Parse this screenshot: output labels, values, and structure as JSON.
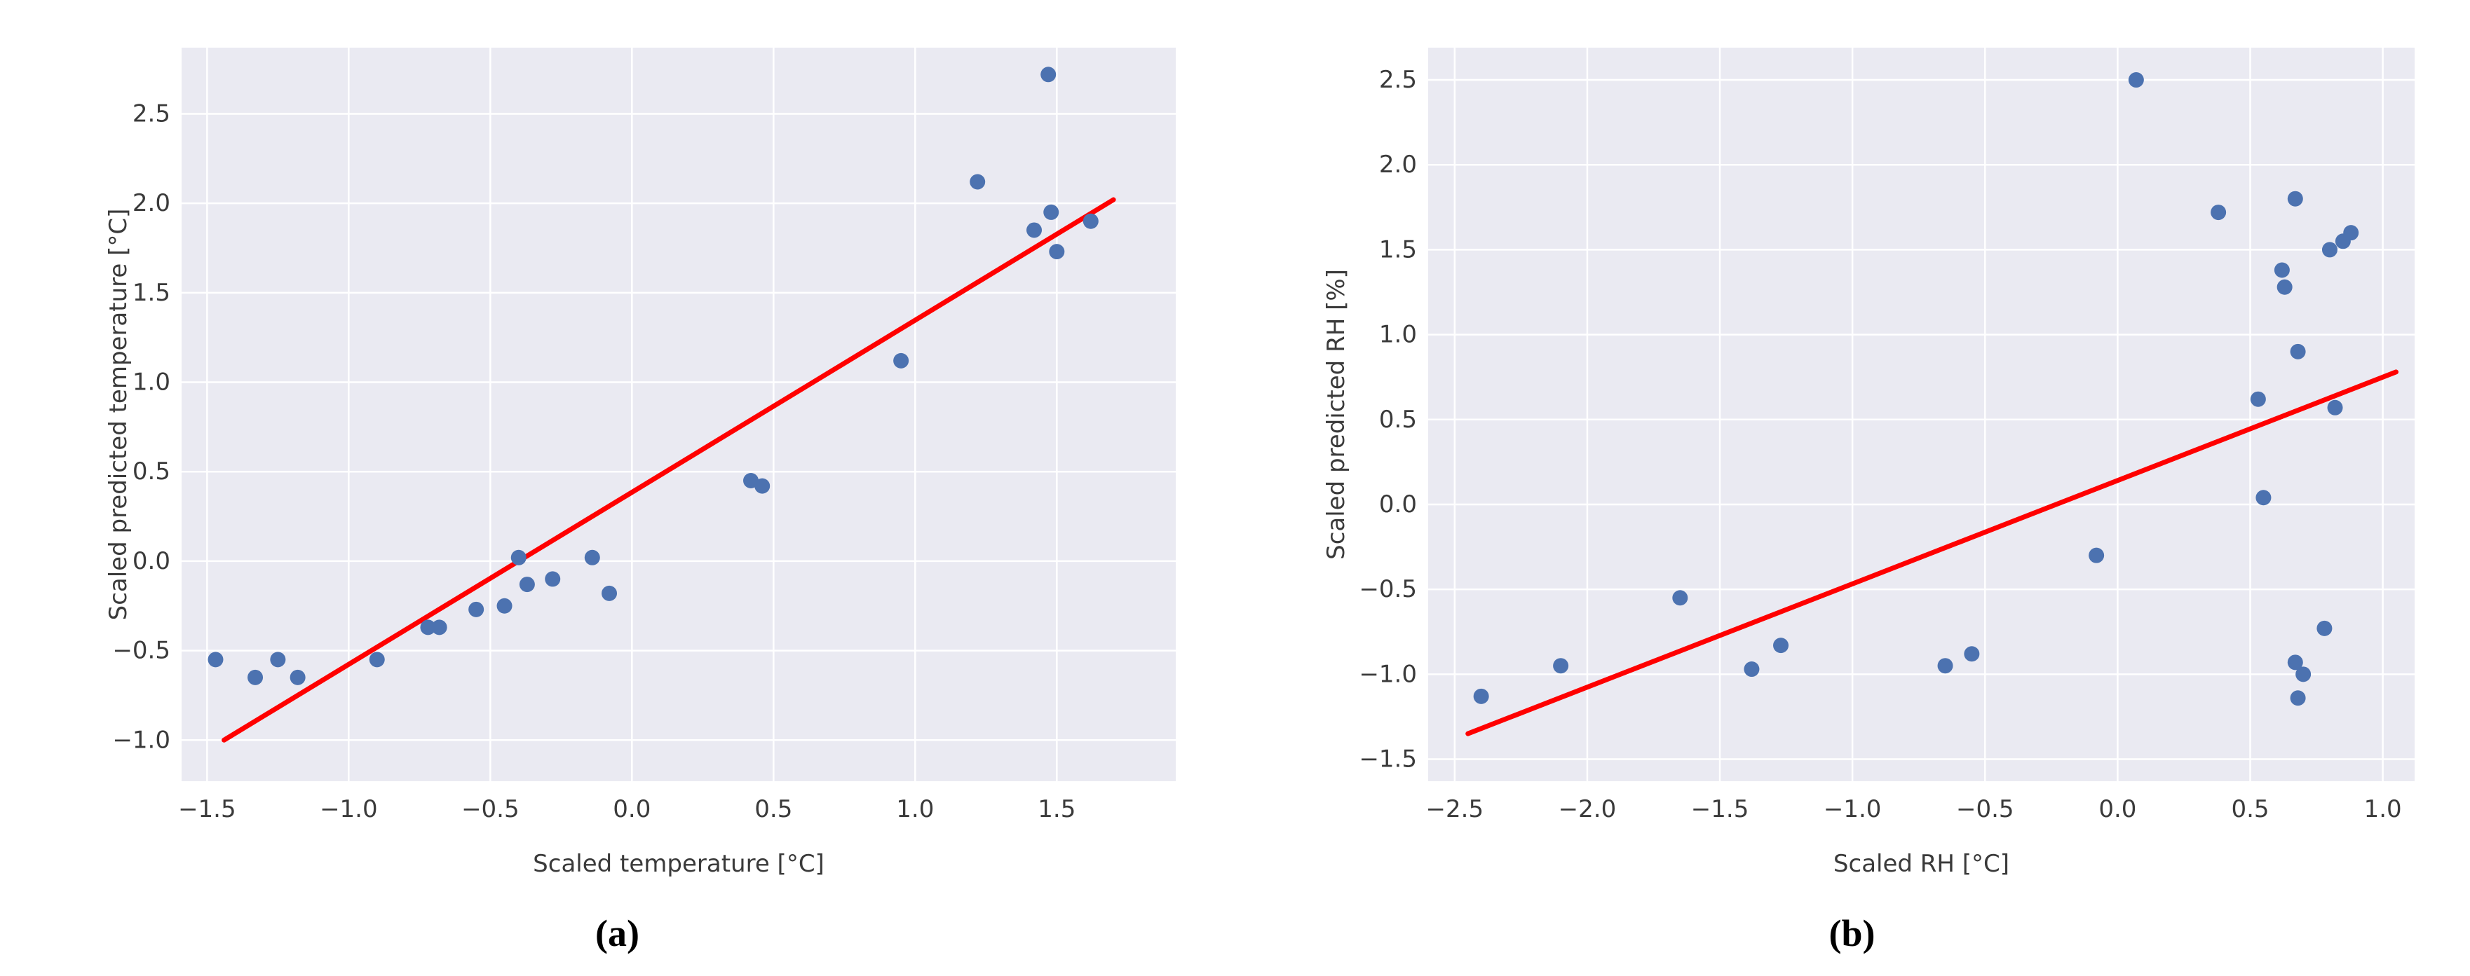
{
  "chart_data": [
    {
      "id": "a",
      "type": "scatter",
      "caption": "(a)",
      "xlabel": "Scaled temperature [°C]",
      "ylabel": "Scaled predicted temperature [°C]",
      "xlim": [
        -1.59,
        1.92
      ],
      "ylim": [
        -1.23,
        2.87
      ],
      "xticks": [
        -1.5,
        -1.0,
        -0.5,
        0.0,
        0.5,
        1.0,
        1.5
      ],
      "yticks": [
        -1.0,
        -0.5,
        0.0,
        0.5,
        1.0,
        1.5,
        2.0,
        2.5
      ],
      "grid": true,
      "plot_bg": "#EAEAF2",
      "grid_color": "#FFFFFF",
      "point_color": "#4C72B0",
      "line_color": "#FF0000",
      "tick_color": "#3A3A3A",
      "points": [
        [
          -1.47,
          -0.55
        ],
        [
          -1.33,
          -0.65
        ],
        [
          -1.25,
          -0.55
        ],
        [
          -1.18,
          -0.65
        ],
        [
          -0.9,
          -0.55
        ],
        [
          -0.72,
          -0.37
        ],
        [
          -0.68,
          -0.37
        ],
        [
          -0.55,
          -0.27
        ],
        [
          -0.45,
          -0.25
        ],
        [
          -0.4,
          0.02
        ],
        [
          -0.37,
          -0.13
        ],
        [
          -0.28,
          -0.1
        ],
        [
          -0.14,
          0.02
        ],
        [
          -0.08,
          -0.18
        ],
        [
          0.42,
          0.45
        ],
        [
          0.46,
          0.42
        ],
        [
          0.95,
          1.12
        ],
        [
          1.22,
          2.12
        ],
        [
          1.42,
          1.85
        ],
        [
          1.47,
          2.72
        ],
        [
          1.48,
          1.95
        ],
        [
          1.5,
          1.73
        ],
        [
          1.62,
          1.9
        ]
      ],
      "regression_line": {
        "x1": -1.44,
        "y1": -1.0,
        "x2": 1.7,
        "y2": 2.02
      }
    },
    {
      "id": "b",
      "type": "scatter",
      "caption": "(b)",
      "xlabel": "Scaled RH [°C]",
      "ylabel": "Scaled predicted RH [%]",
      "xlim": [
        -2.6,
        1.12
      ],
      "ylim": [
        -1.63,
        2.69
      ],
      "xticks": [
        -2.5,
        -2.0,
        -1.5,
        -1.0,
        -0.5,
        0.0,
        0.5,
        1.0
      ],
      "yticks": [
        -1.5,
        -1.0,
        -0.5,
        0.0,
        0.5,
        1.0,
        1.5,
        2.0,
        2.5
      ],
      "grid": true,
      "plot_bg": "#EAEAF2",
      "grid_color": "#FFFFFF",
      "point_color": "#4C72B0",
      "line_color": "#FF0000",
      "tick_color": "#3A3A3A",
      "points": [
        [
          -2.4,
          -1.13
        ],
        [
          -2.1,
          -0.95
        ],
        [
          -1.65,
          -0.55
        ],
        [
          -1.38,
          -0.97
        ],
        [
          -1.27,
          -0.83
        ],
        [
          -0.65,
          -0.95
        ],
        [
          -0.55,
          -0.88
        ],
        [
          -0.08,
          -0.3
        ],
        [
          0.07,
          2.5
        ],
        [
          0.38,
          1.72
        ],
        [
          0.53,
          0.62
        ],
        [
          0.55,
          0.04
        ],
        [
          0.62,
          1.38
        ],
        [
          0.63,
          1.28
        ],
        [
          0.67,
          1.8
        ],
        [
          0.68,
          0.9
        ],
        [
          0.67,
          -0.93
        ],
        [
          0.7,
          -1.0
        ],
        [
          0.68,
          -1.14
        ],
        [
          0.78,
          -0.73
        ],
        [
          0.8,
          1.5
        ],
        [
          0.85,
          1.55
        ],
        [
          0.88,
          1.6
        ],
        [
          0.82,
          0.57
        ]
      ],
      "regression_line": {
        "x1": -2.45,
        "y1": -1.35,
        "x2": 1.05,
        "y2": 0.78
      }
    }
  ]
}
